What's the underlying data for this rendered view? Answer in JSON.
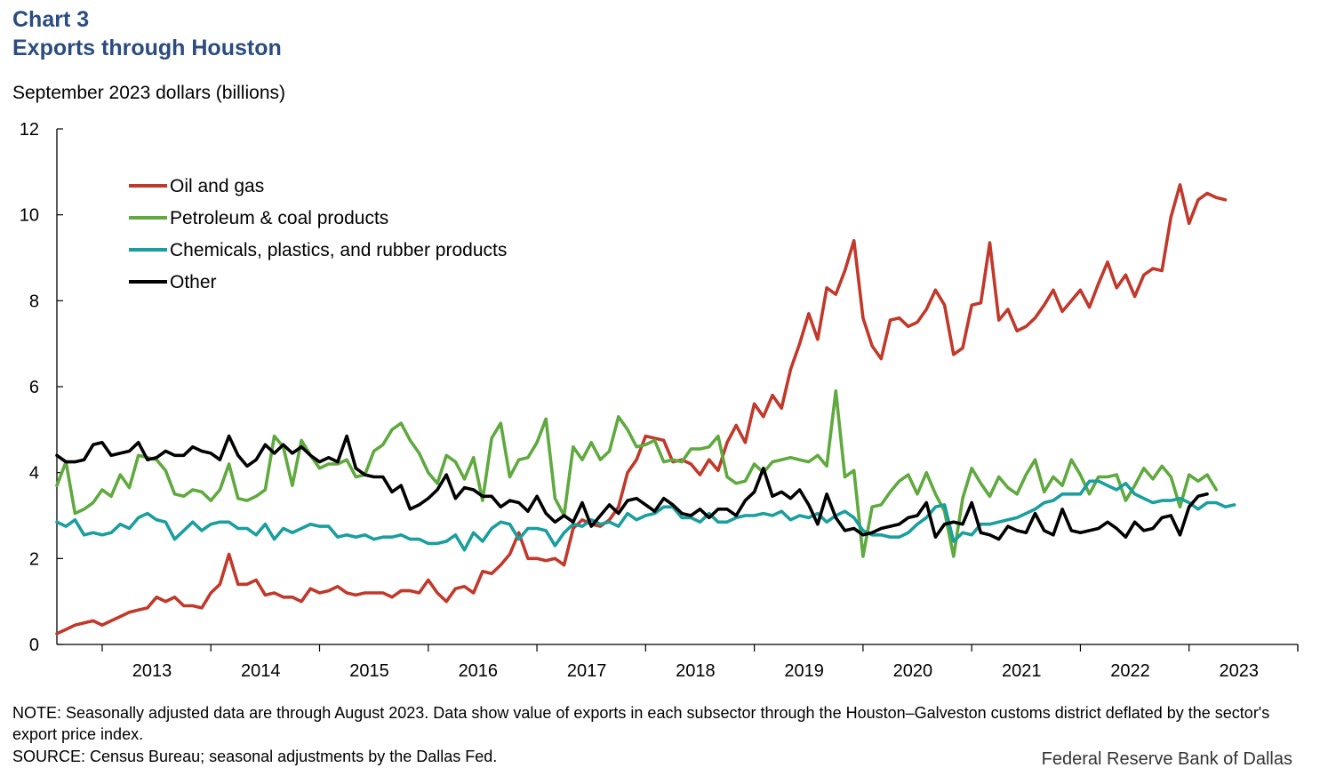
{
  "header": {
    "chart_number": "Chart 3",
    "title": "Exports through Houston",
    "unit_label": "September 2023 dollars (billions)"
  },
  "footer": {
    "note": "NOTE: Seasonally adjusted data are through August 2023. Data show value of exports in each subsector through the Houston–Galveston customs district deflated by the sector's export price index.",
    "source": "SOURCE: Census Bureau; seasonal adjustments by the Dallas Fed.",
    "credit": "Federal Reserve Bank of Dallas"
  },
  "colors": {
    "oil_gas": "#c0392b",
    "petroleum": "#5fa93f",
    "chemicals": "#1a9e9e",
    "other": "#000000"
  },
  "chart_data": {
    "type": "line",
    "x_start": "2012-08",
    "frequency": "monthly",
    "x_tick_labels": [
      "2013",
      "2014",
      "2015",
      "2016",
      "2017",
      "2018",
      "2019",
      "2020",
      "2021",
      "2022",
      "2023"
    ],
    "ylim": [
      0,
      12
    ],
    "y_ticks": [
      0,
      2,
      4,
      6,
      8,
      10,
      12
    ],
    "legend_position": "top-left",
    "grid": false,
    "series": [
      {
        "name": "Oil and gas",
        "values": [
          0.25,
          0.35,
          0.45,
          0.5,
          0.55,
          0.45,
          0.55,
          0.65,
          0.75,
          0.8,
          0.85,
          1.1,
          1.0,
          1.1,
          0.9,
          0.9,
          0.85,
          1.2,
          1.4,
          2.1,
          1.4,
          1.4,
          1.5,
          1.15,
          1.2,
          1.1,
          1.1,
          1.0,
          1.3,
          1.2,
          1.25,
          1.35,
          1.2,
          1.15,
          1.2,
          1.2,
          1.2,
          1.1,
          1.25,
          1.25,
          1.2,
          1.5,
          1.2,
          1.0,
          1.3,
          1.35,
          1.2,
          1.7,
          1.65,
          1.85,
          2.1,
          2.6,
          2.0,
          2.0,
          1.95,
          2.0,
          1.85,
          2.7,
          2.9,
          2.8,
          2.75,
          2.9,
          3.2,
          4.0,
          4.3,
          4.85,
          4.8,
          4.75,
          4.25,
          4.3,
          4.2,
          3.95,
          4.3,
          4.05,
          4.7,
          5.1,
          4.7,
          5.6,
          5.3,
          5.8,
          5.5,
          6.4,
          7.0,
          7.7,
          7.1,
          8.3,
          8.15,
          8.7,
          9.4,
          7.6,
          6.95,
          6.65,
          7.55,
          7.6,
          7.4,
          7.5,
          7.8,
          8.25,
          7.9,
          6.75,
          6.9,
          7.9,
          7.95,
          9.35,
          7.55,
          7.8,
          7.3,
          7.4,
          7.6,
          7.9,
          8.25,
          7.75,
          8.0,
          8.25,
          7.85,
          8.4,
          8.9,
          8.3,
          8.6,
          8.1,
          8.6,
          8.75,
          8.7,
          9.95,
          10.7,
          9.8,
          10.35,
          10.5,
          10.4,
          10.35
        ]
      },
      {
        "name": "Petroleum & coal products",
        "values": [
          3.7,
          4.25,
          3.05,
          3.15,
          3.3,
          3.6,
          3.45,
          3.95,
          3.65,
          4.4,
          4.35,
          4.3,
          4.05,
          3.5,
          3.45,
          3.6,
          3.55,
          3.35,
          3.6,
          4.2,
          3.4,
          3.35,
          3.45,
          3.6,
          4.85,
          4.6,
          3.7,
          4.75,
          4.4,
          4.1,
          4.2,
          4.2,
          4.3,
          3.9,
          3.95,
          4.5,
          4.65,
          5.0,
          5.15,
          4.75,
          4.45,
          4.0,
          3.75,
          4.4,
          4.25,
          3.85,
          4.35,
          3.35,
          4.8,
          5.15,
          3.9,
          4.3,
          4.35,
          4.7,
          5.25,
          3.4,
          3.0,
          4.6,
          4.3,
          4.7,
          4.3,
          4.5,
          5.3,
          5.0,
          4.6,
          4.65,
          4.75,
          4.25,
          4.3,
          4.25,
          4.55,
          4.55,
          4.6,
          4.85,
          3.9,
          3.75,
          3.8,
          4.2,
          4.0,
          4.25,
          4.3,
          4.35,
          4.3,
          4.25,
          4.4,
          4.15,
          5.9,
          3.9,
          4.05,
          2.05,
          3.2,
          3.25,
          3.55,
          3.8,
          3.95,
          3.5,
          4.0,
          3.5,
          3.1,
          2.05,
          3.4,
          4.1,
          3.75,
          3.45,
          3.9,
          3.65,
          3.5,
          3.95,
          4.3,
          3.55,
          3.9,
          3.7,
          4.3,
          3.95,
          3.5,
          3.9,
          3.9,
          3.95,
          3.35,
          3.7,
          4.1,
          3.85,
          4.15,
          3.9,
          3.2,
          3.95,
          3.8,
          3.95,
          3.6
        ]
      },
      {
        "name": "Chemicals, plastics, and rubber products",
        "values": [
          2.85,
          2.75,
          2.9,
          2.55,
          2.6,
          2.55,
          2.6,
          2.8,
          2.7,
          2.95,
          3.05,
          2.9,
          2.85,
          2.45,
          2.65,
          2.85,
          2.65,
          2.8,
          2.85,
          2.85,
          2.7,
          2.7,
          2.55,
          2.8,
          2.45,
          2.7,
          2.6,
          2.7,
          2.8,
          2.75,
          2.75,
          2.5,
          2.55,
          2.5,
          2.55,
          2.45,
          2.5,
          2.5,
          2.55,
          2.45,
          2.45,
          2.35,
          2.35,
          2.4,
          2.55,
          2.2,
          2.6,
          2.4,
          2.7,
          2.85,
          2.8,
          2.45,
          2.7,
          2.7,
          2.65,
          2.3,
          2.6,
          2.8,
          2.75,
          2.9,
          2.8,
          2.85,
          2.75,
          3.05,
          2.9,
          3.0,
          3.05,
          3.2,
          3.2,
          2.95,
          2.95,
          2.85,
          3.05,
          2.85,
          2.85,
          2.95,
          3.0,
          3.0,
          3.05,
          3.0,
          3.1,
          2.9,
          3.0,
          2.95,
          3.05,
          2.85,
          3.0,
          3.1,
          2.95,
          2.65,
          2.55,
          2.55,
          2.5,
          2.5,
          2.6,
          2.8,
          2.95,
          3.2,
          3.25,
          2.4,
          2.6,
          2.55,
          2.8,
          2.8,
          2.85,
          2.9,
          2.95,
          3.05,
          3.15,
          3.3,
          3.35,
          3.5,
          3.5,
          3.5,
          3.8,
          3.8,
          3.7,
          3.6,
          3.75,
          3.5,
          3.4,
          3.3,
          3.35,
          3.35,
          3.4,
          3.3,
          3.15,
          3.3,
          3.3,
          3.2,
          3.25
        ]
      },
      {
        "name": "Other",
        "values": [
          4.4,
          4.25,
          4.25,
          4.3,
          4.65,
          4.7,
          4.4,
          4.45,
          4.5,
          4.7,
          4.3,
          4.35,
          4.5,
          4.4,
          4.4,
          4.6,
          4.5,
          4.45,
          4.3,
          4.85,
          4.4,
          4.15,
          4.3,
          4.65,
          4.45,
          4.65,
          4.45,
          4.6,
          4.4,
          4.25,
          4.35,
          4.25,
          4.85,
          4.1,
          3.95,
          3.9,
          3.9,
          3.55,
          3.7,
          3.15,
          3.25,
          3.4,
          3.6,
          3.95,
          3.4,
          3.65,
          3.6,
          3.45,
          3.45,
          3.2,
          3.35,
          3.3,
          3.1,
          3.45,
          3.05,
          2.85,
          3.0,
          2.85,
          3.3,
          2.75,
          3.0,
          3.25,
          3.05,
          3.35,
          3.4,
          3.25,
          3.1,
          3.4,
          3.25,
          3.05,
          3.0,
          3.15,
          2.95,
          3.15,
          3.15,
          3.0,
          3.35,
          3.55,
          4.1,
          3.45,
          3.55,
          3.4,
          3.6,
          3.25,
          2.8,
          3.5,
          2.95,
          2.65,
          2.7,
          2.55,
          2.6,
          2.7,
          2.75,
          2.8,
          2.95,
          3.0,
          3.3,
          2.5,
          2.8,
          2.85,
          2.8,
          3.3,
          2.6,
          2.55,
          2.45,
          2.75,
          2.65,
          2.6,
          3.05,
          2.65,
          2.55,
          3.15,
          2.65,
          2.6,
          2.65,
          2.7,
          2.85,
          2.7,
          2.5,
          2.85,
          2.65,
          2.7,
          2.95,
          3.0,
          2.55,
          3.2,
          3.45,
          3.5
        ]
      }
    ]
  }
}
